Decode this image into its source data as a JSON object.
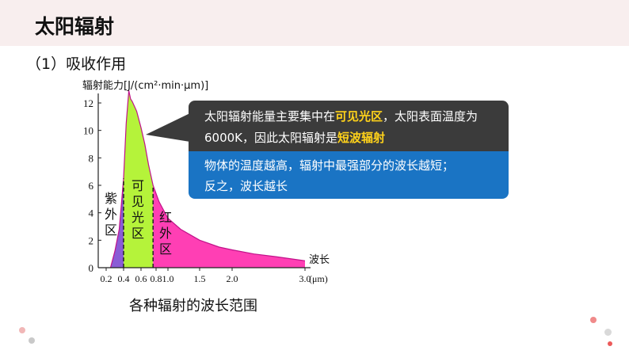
{
  "header": {
    "title": "太阳辐射"
  },
  "section": {
    "label": "（1）吸收作用"
  },
  "callout": {
    "dark_part1": "太阳辐射能量主要集中在",
    "dark_hl1": "可见光区",
    "dark_part2": "，太阳表面温度为6000K，因此太阳辐射是",
    "dark_hl2": "短波辐射",
    "blue_line1": "物体的温度越高，辐射中最强部分的波长越短；",
    "blue_line2": "反之，波长越长"
  },
  "caption": "各种辐射的波长范围",
  "chart_data": {
    "type": "area",
    "title": "",
    "ylabel": "辐射能力[J/(cm²·min·μm)]",
    "xlabel": "波长",
    "xunit": "(μm)",
    "x_tick_labels": [
      "0.2",
      "0.4",
      "0.6",
      "0.8",
      "1.0",
      "1.5",
      "2.0",
      "3.0"
    ],
    "y_tick_labels": [
      "0",
      "2",
      "4",
      "6",
      "8",
      "10",
      "12"
    ],
    "ylim": [
      0,
      13
    ],
    "regions": [
      {
        "name": "紫外区",
        "x_range": [
          0.2,
          0.4
        ],
        "color": "#8a5cd6"
      },
      {
        "name": "可见光区",
        "x_range": [
          0.4,
          0.76
        ],
        "color": "#b5f33a"
      },
      {
        "name": "红外区",
        "x_range": [
          0.76,
          3.0
        ],
        "color": "#ff3fb4"
      }
    ],
    "x": [
      0.25,
      0.3,
      0.35,
      0.4,
      0.43,
      0.46,
      0.48,
      0.5,
      0.55,
      0.6,
      0.65,
      0.7,
      0.76,
      0.85,
      1.0,
      1.2,
      1.5,
      1.8,
      2.0,
      2.3,
      2.6,
      3.0
    ],
    "y": [
      0,
      1.2,
      2.8,
      6.5,
      10.5,
      12.9,
      12.3,
      12.1,
      11.4,
      10.2,
      9.0,
      7.5,
      6.0,
      4.8,
      3.6,
      2.8,
      2.0,
      1.5,
      1.3,
      1.0,
      0.8,
      0.5
    ]
  }
}
